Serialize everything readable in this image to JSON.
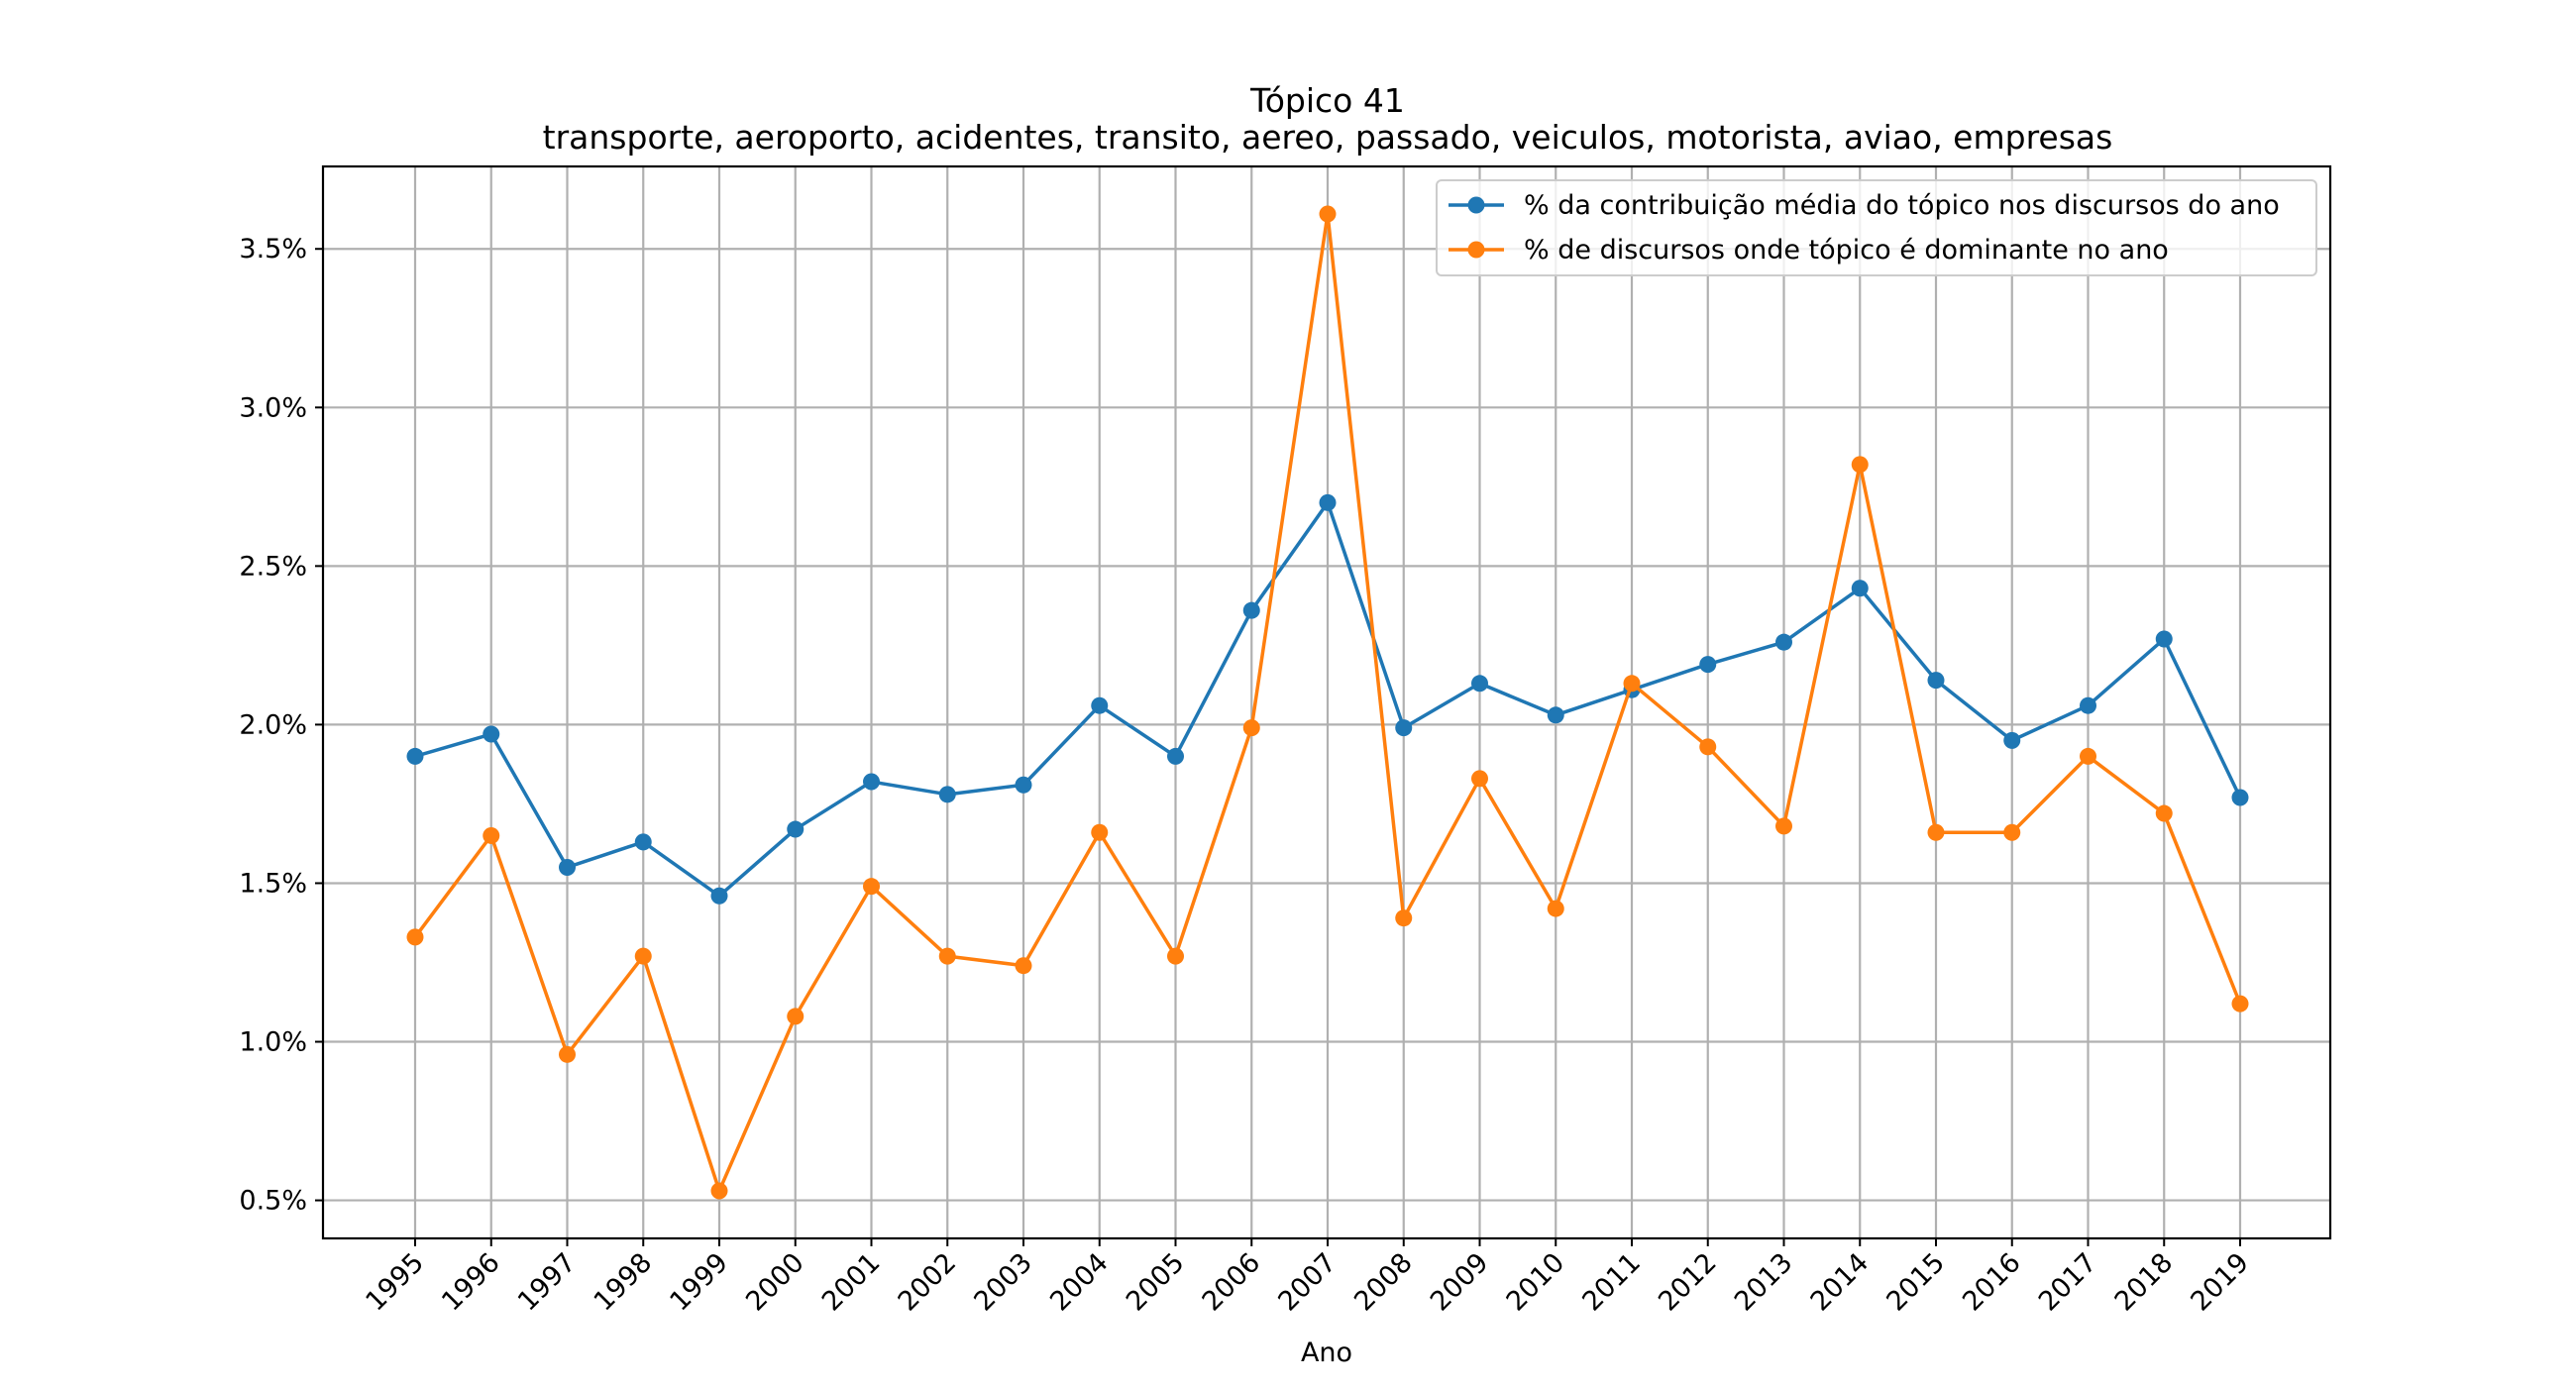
{
  "chart_data": {
    "type": "line",
    "title": "Tópico 41",
    "subtitle": "transporte, aeroporto, acidentes, transito, aereo, passado, veiculos, motorista, aviao, empresas",
    "xlabel": "Ano",
    "ylabel": "",
    "x": [
      "1995",
      "1996",
      "1997",
      "1998",
      "1999",
      "2000",
      "2001",
      "2002",
      "2003",
      "2004",
      "2005",
      "2006",
      "2007",
      "2008",
      "2009",
      "2010",
      "2011",
      "2012",
      "2013",
      "2014",
      "2015",
      "2016",
      "2017",
      "2018",
      "2019"
    ],
    "yticks": [
      0.5,
      1.0,
      1.5,
      2.0,
      2.5,
      3.0,
      3.5
    ],
    "ytick_labels": [
      "0.5%",
      "1.0%",
      "1.5%",
      "2.0%",
      "2.5%",
      "3.0%",
      "3.5%"
    ],
    "ylim": [
      0.38,
      3.76
    ],
    "grid": true,
    "legend_position": "top-right",
    "series": [
      {
        "name": "% da contribuição média do tópico nos discursos do ano",
        "color": "#1f77b4",
        "values": [
          1.9,
          1.97,
          1.55,
          1.63,
          1.46,
          1.67,
          1.82,
          1.78,
          1.81,
          2.06,
          1.9,
          2.36,
          2.7,
          1.99,
          2.13,
          2.03,
          2.11,
          2.19,
          2.26,
          2.43,
          2.14,
          1.95,
          2.06,
          2.27,
          1.77
        ]
      },
      {
        "name": "% de discursos onde tópico é dominante no ano",
        "color": "#ff7f0e",
        "values": [
          1.33,
          1.65,
          0.96,
          1.27,
          0.53,
          1.08,
          1.49,
          1.27,
          1.24,
          1.66,
          1.27,
          1.99,
          3.61,
          1.39,
          1.83,
          1.42,
          2.13,
          1.93,
          1.68,
          2.82,
          1.66,
          1.66,
          1.9,
          1.72,
          1.12
        ]
      }
    ]
  }
}
